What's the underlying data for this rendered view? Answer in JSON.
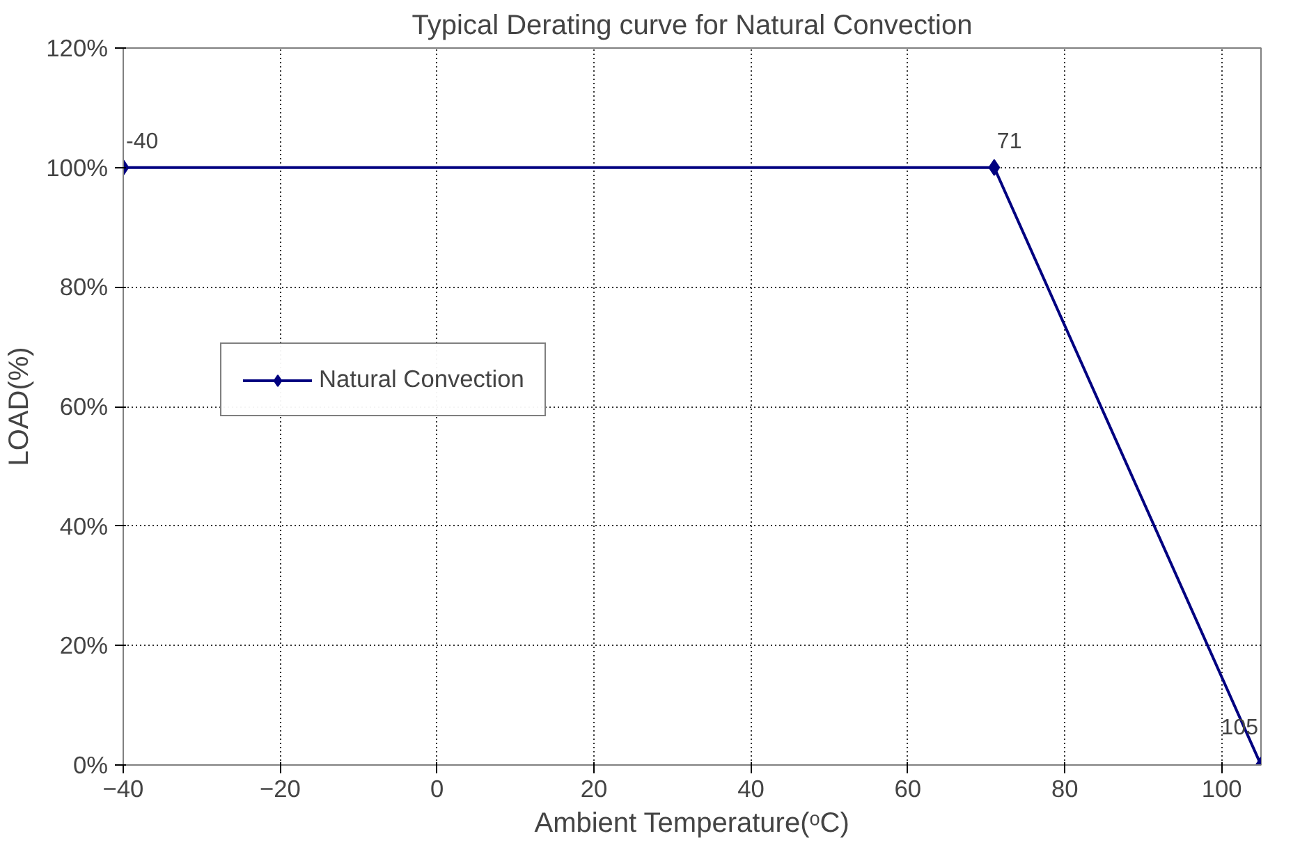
{
  "chart_data": {
    "type": "line",
    "title": "Typical Derating curve for Natural Convection",
    "xlabel": "Ambient Temperature(ᵒC)",
    "ylabel": "LOAD(%)",
    "x": [
      -40,
      71,
      105
    ],
    "series": [
      {
        "name": "Natural Convection",
        "color": "#000080",
        "values": [
          100,
          100,
          0
        ]
      }
    ],
    "annotations": [
      {
        "text": "-40",
        "x": -40,
        "y": 100
      },
      {
        "text": "71",
        "x": 71,
        "y": 100
      },
      {
        "text": "105",
        "x": 105,
        "y": 0
      }
    ],
    "xlim": [
      -40,
      105
    ],
    "xticks": [
      -40,
      -20,
      0,
      20,
      40,
      60,
      80,
      100
    ],
    "ylim": [
      0,
      120
    ],
    "yticks": [
      {
        "value": 0,
        "label": "0%"
      },
      {
        "value": 20,
        "label": "20%"
      },
      {
        "value": 40,
        "label": "40%"
      },
      {
        "value": 60,
        "label": "60%"
      },
      {
        "value": 80,
        "label": "80%"
      },
      {
        "value": 100,
        "label": "100%"
      },
      {
        "value": 120,
        "label": "120%"
      }
    ],
    "grid": true,
    "legend": "left",
    "marker": "diamond",
    "line_style": "solid"
  }
}
